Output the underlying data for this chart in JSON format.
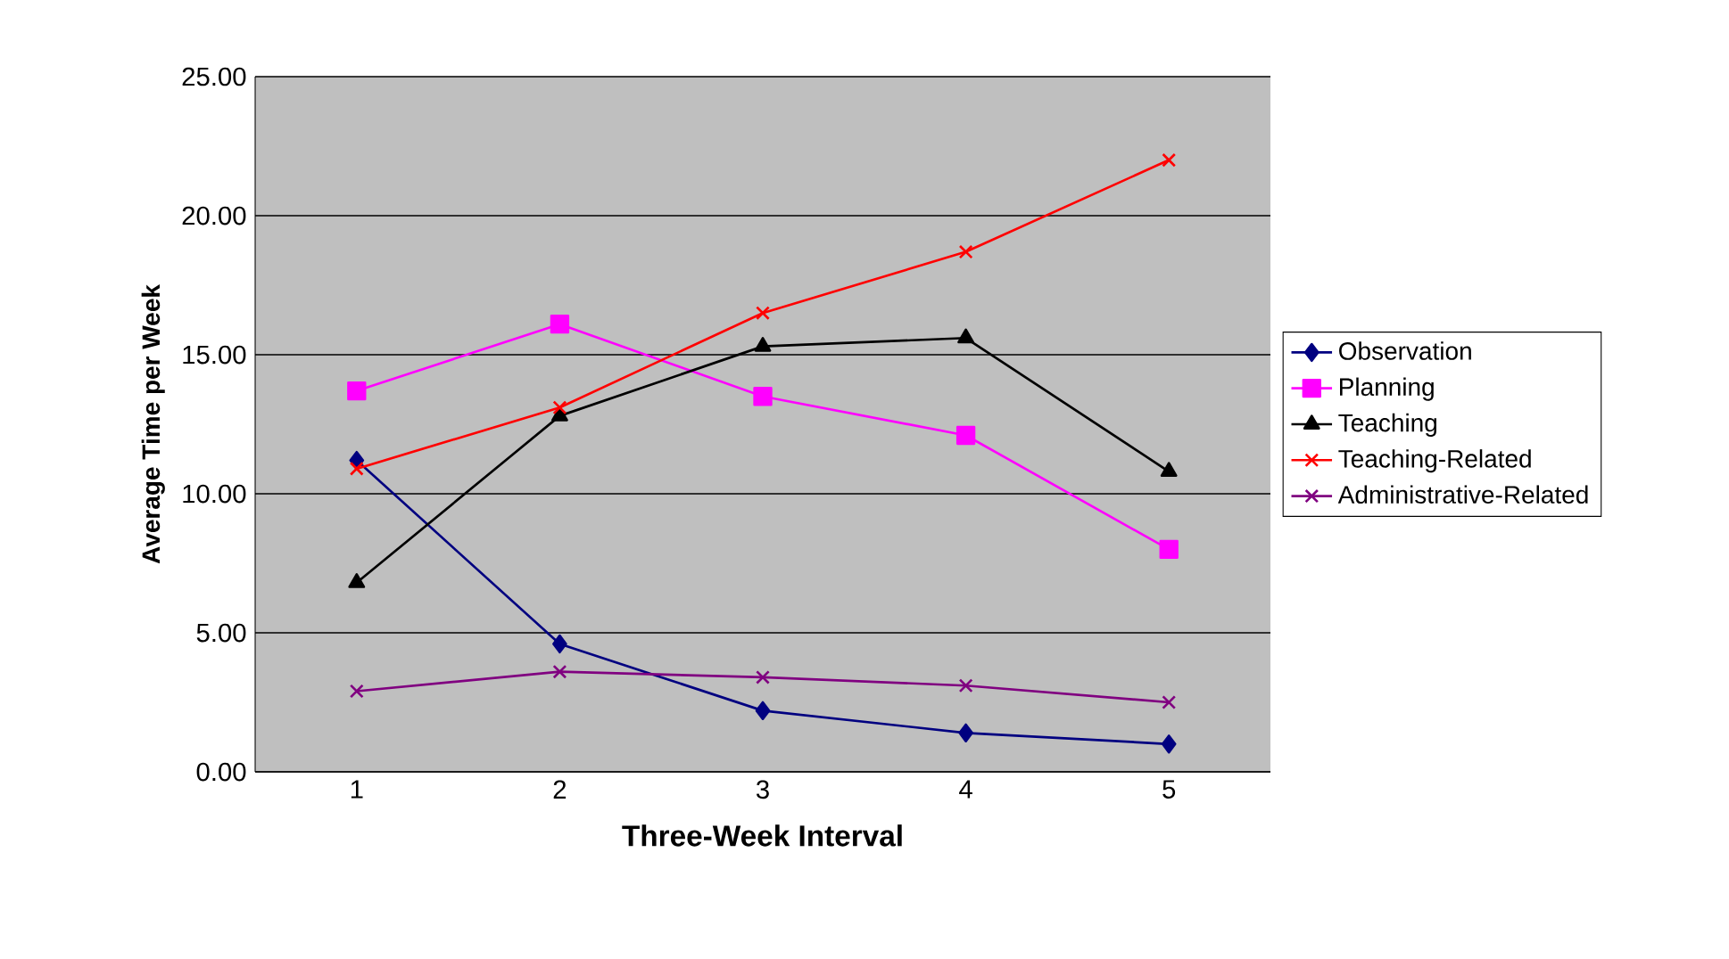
{
  "chart_data": {
    "type": "line",
    "xlabel": "Three-Week Interval",
    "ylabel": "Average Time per Week",
    "categories": [
      "1",
      "2",
      "3",
      "4",
      "5"
    ],
    "ylim": [
      0,
      25
    ],
    "yticks": [
      {
        "value": 0,
        "label": "0.00"
      },
      {
        "value": 5,
        "label": "5.00"
      },
      {
        "value": 10,
        "label": "10.00"
      },
      {
        "value": 15,
        "label": "15.00"
      },
      {
        "value": 20,
        "label": "20.00"
      },
      {
        "value": 25,
        "label": "25.00"
      }
    ],
    "grid": "y",
    "legend": "right",
    "line_style": "solid",
    "series": [
      {
        "name": "Observation",
        "color": "#000080",
        "marker": "diamond",
        "values": [
          11.2,
          4.6,
          2.2,
          1.4,
          1.0
        ]
      },
      {
        "name": "Planning",
        "color": "#ff00ff",
        "marker": "square",
        "values": [
          13.7,
          16.1,
          13.5,
          12.1,
          8.0
        ]
      },
      {
        "name": "Teaching",
        "color": "#000000",
        "marker": "triangle",
        "values": [
          6.8,
          12.8,
          15.3,
          15.6,
          10.8
        ]
      },
      {
        "name": "Teaching-Related",
        "color": "#ff0000",
        "marker": "cross",
        "values": [
          10.9,
          13.1,
          16.5,
          18.7,
          22.0
        ]
      },
      {
        "name": "Administrative-Related",
        "color": "#800080",
        "marker": "cross",
        "values": [
          2.9,
          3.6,
          3.4,
          3.1,
          2.5
        ]
      }
    ]
  }
}
